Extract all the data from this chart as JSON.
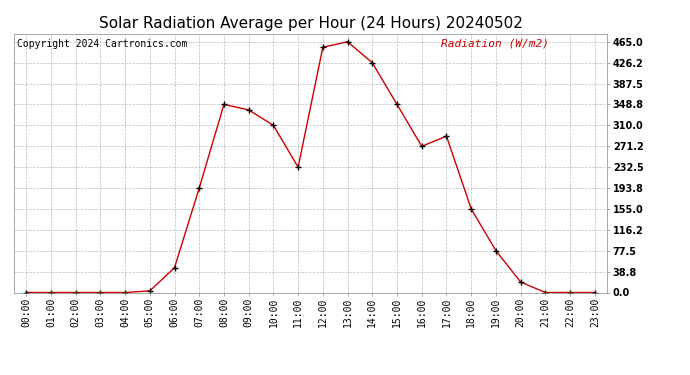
{
  "title": "Solar Radiation Average per Hour (24 Hours) 20240502",
  "copyright_text": "Copyright 2024 Cartronics.com",
  "legend_text": "Radiation (W/m2)",
  "hours": [
    "00:00",
    "01:00",
    "02:00",
    "03:00",
    "04:00",
    "05:00",
    "06:00",
    "07:00",
    "08:00",
    "09:00",
    "10:00",
    "11:00",
    "12:00",
    "13:00",
    "14:00",
    "15:00",
    "16:00",
    "17:00",
    "18:00",
    "19:00",
    "20:00",
    "21:00",
    "22:00",
    "23:00"
  ],
  "values": [
    0.0,
    0.0,
    0.0,
    0.0,
    0.0,
    3.0,
    46.0,
    193.8,
    348.8,
    338.8,
    310.0,
    232.5,
    455.0,
    465.0,
    426.2,
    348.8,
    271.2,
    290.0,
    155.0,
    77.5,
    19.4,
    0.0,
    0.0,
    0.0
  ],
  "line_color": "#cc0000",
  "marker": "+",
  "marker_color": "#000000",
  "bg_color": "#ffffff",
  "grid_color": "#aaaaaa",
  "title_color": "#000000",
  "copyright_color": "#000000",
  "legend_color": "#cc0000",
  "ylim": [
    0.0,
    480.0
  ],
  "ytick_values": [
    0.0,
    38.8,
    77.5,
    116.2,
    155.0,
    193.8,
    232.5,
    271.2,
    310.0,
    348.8,
    387.5,
    426.2,
    465.0
  ],
  "title_fontsize": 11,
  "axis_fontsize": 7,
  "copyright_fontsize": 7,
  "legend_fontsize": 8
}
